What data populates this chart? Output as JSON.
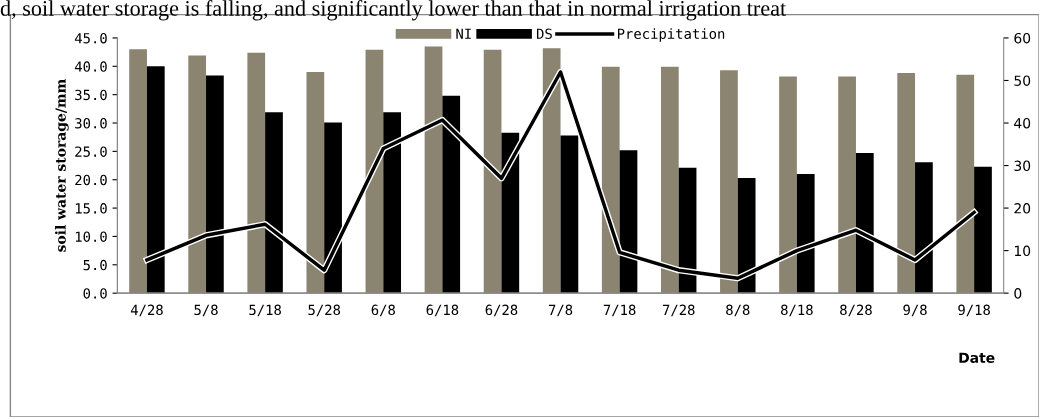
{
  "chart_data": {
    "type": "bar",
    "annotations": [
      "d, soil water storage is falling, and significantly lower than that in normal irrigation treat"
    ],
    "xlabel": "Date",
    "ylabel": "soil water storage/mm",
    "categories": [
      "4/28",
      "5/8",
      "5/18",
      "5/28",
      "6/8",
      "6/18",
      "6/28",
      "7/8",
      "7/18",
      "7/28",
      "8/8",
      "8/18",
      "8/28",
      "9/8",
      "9/18"
    ],
    "series": [
      {
        "name": "NI",
        "color": "#8a8470",
        "values": [
          43.0,
          41.9,
          42.4,
          39.0,
          42.9,
          43.5,
          42.9,
          43.2,
          39.9,
          39.9,
          39.3,
          38.2,
          38.2,
          38.8,
          38.5
        ]
      },
      {
        "name": "DS",
        "color": "#000000",
        "values": [
          40.0,
          38.4,
          31.9,
          30.1,
          31.9,
          34.8,
          28.3,
          27.8,
          25.2,
          22.1,
          20.3,
          21.0,
          24.7,
          23.1,
          22.3
        ]
      },
      {
        "name": "Precipitation",
        "type": "line",
        "axis": "y2",
        "color": "#000000",
        "values": [
          7.8,
          13.6,
          16.2,
          5.4,
          34,
          40.7,
          27,
          52,
          9.6,
          5.4,
          3.5,
          10,
          14.8,
          7.8,
          19
        ]
      }
    ],
    "ylim": [
      0,
      45
    ],
    "yticks": [
      {
        "value": 0,
        "label": "0.0"
      },
      {
        "value": 5,
        "label": "5.0"
      },
      {
        "value": 10,
        "label": "10.0"
      },
      {
        "value": 15,
        "label": "15.0"
      },
      {
        "value": 20,
        "label": "20.0"
      },
      {
        "value": 25,
        "label": "25.0"
      },
      {
        "value": 30,
        "label": "30.0"
      },
      {
        "value": 35,
        "label": "35.0"
      },
      {
        "value": 40,
        "label": "40.0"
      },
      {
        "value": 45,
        "label": "45.0"
      }
    ],
    "y2lim": [
      0,
      60
    ],
    "y2ticks": [
      0,
      10,
      20,
      30,
      40,
      50,
      60
    ],
    "legend": "top",
    "grid": false,
    "marker": "none",
    "line_style": "solid"
  }
}
